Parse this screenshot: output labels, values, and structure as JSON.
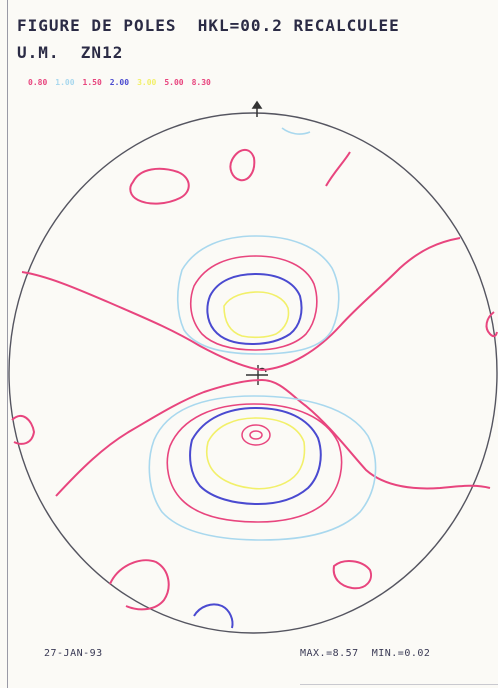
{
  "header": {
    "title": "FIGURE DE POLES  HKL=00.2 RECALCULEE",
    "subtitle": "U.M.  ZN12"
  },
  "legend": {
    "levels": [
      {
        "label": "0.80",
        "color": "#e8457e"
      },
      {
        "label": "1.00",
        "color": "#a9d8ee"
      },
      {
        "label": "1.50",
        "color": "#e8457e"
      },
      {
        "label": "2.00",
        "color": "#4a4ad0"
      },
      {
        "label": "3.00",
        "color": "#f2f06a"
      },
      {
        "label": "5.00",
        "color": "#e8457e"
      },
      {
        "label": "8.30",
        "color": "#e8457e"
      }
    ]
  },
  "footer": {
    "date": "27-JAN-93",
    "max_min": "MAX.=8.57  MIN.=0.02"
  },
  "colors": {
    "circle": "#555560",
    "magenta": "#e8457e",
    "lightblue": "#a9d8ee",
    "blue": "#4a4ad0",
    "yellow": "#f2f06a",
    "ink": "#2b2b45"
  }
}
